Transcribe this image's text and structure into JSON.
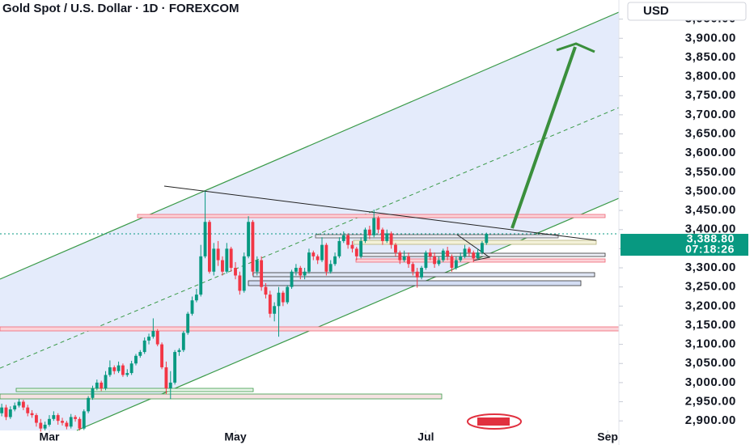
{
  "chart_data": {
    "type": "candlestick",
    "title": "Gold Spot / U.S. Dollar · 1D · FOREXCOM",
    "currency": "USD",
    "up_color": "#089981",
    "down_color": "#f23645",
    "open": [
      2920,
      2935,
      2910,
      2930,
      2940,
      2950,
      2935,
      2920,
      2915,
      2895,
      2880,
      2890,
      2905,
      2915,
      2900,
      2895,
      2885,
      2910,
      2905,
      2880,
      2925,
      2960,
      2985,
      3000,
      2985,
      3020,
      3040,
      3030,
      3045,
      3020,
      3025,
      3050,
      3070,
      3080,
      3110,
      3120,
      3135,
      3100,
      3040,
      2985,
      3000,
      3080,
      3085,
      3130,
      3180,
      3215,
      3230,
      3330,
      3420,
      3290,
      3350,
      3320,
      3290,
      3350,
      3300,
      3280,
      3240,
      3330,
      3420,
      3290,
      3320,
      3250,
      3230,
      3180,
      3200,
      3235,
      3210,
      3250,
      3290,
      3300,
      3280,
      3290,
      3340,
      3330,
      3320,
      3360,
      3290,
      3310,
      3330,
      3370,
      3385,
      3360,
      3350,
      3330,
      3370,
      3400,
      3385,
      3430,
      3400,
      3370,
      3390,
      3360,
      3340,
      3320,
      3330,
      3310,
      3290,
      3275,
      3300,
      3340,
      3330,
      3310,
      3320,
      3345,
      3330,
      3300,
      3320,
      3330,
      3350,
      3340,
      3325,
      3340,
      3365
    ],
    "high": [
      2945,
      2942,
      2938,
      2948,
      2958,
      2955,
      2942,
      2928,
      2920,
      2905,
      2898,
      2915,
      2925,
      2920,
      2908,
      2900,
      2918,
      2915,
      2910,
      2930,
      2965,
      2992,
      3008,
      3005,
      3030,
      3058,
      3045,
      3055,
      3050,
      3035,
      3057,
      3075,
      3085,
      3118,
      3128,
      3168,
      3140,
      3105,
      3055,
      3030,
      3085,
      3090,
      3135,
      3185,
      3225,
      3245,
      3360,
      3500,
      3425,
      3365,
      3370,
      3330,
      3365,
      3355,
      3315,
      3290,
      3340,
      3435,
      3425,
      3330,
      3330,
      3260,
      3240,
      3210,
      3250,
      3240,
      3255,
      3295,
      3310,
      3305,
      3300,
      3350,
      3345,
      3335,
      3380,
      3365,
      3320,
      3340,
      3380,
      3395,
      3390,
      3370,
      3355,
      3380,
      3405,
      3410,
      3452,
      3435,
      3405,
      3400,
      3395,
      3365,
      3345,
      3345,
      3340,
      3315,
      3300,
      3305,
      3345,
      3350,
      3340,
      3330,
      3350,
      3355,
      3335,
      3330,
      3340,
      3360,
      3355,
      3345,
      3350,
      3370,
      3392
    ],
    "low": [
      2912,
      2902,
      2905,
      2925,
      2935,
      2928,
      2912,
      2908,
      2885,
      2872,
      2875,
      2885,
      2900,
      2890,
      2888,
      2878,
      2880,
      2898,
      2875,
      2876,
      2920,
      2955,
      2980,
      2978,
      2980,
      3015,
      3022,
      3025,
      3015,
      3015,
      3020,
      3045,
      3065,
      3075,
      3100,
      3115,
      3095,
      3035,
      2970,
      2957,
      2995,
      3070,
      3080,
      3125,
      3175,
      3210,
      3225,
      3325,
      3285,
      3280,
      3305,
      3280,
      3285,
      3290,
      3270,
      3230,
      3235,
      3325,
      3280,
      3280,
      3240,
      3220,
      3170,
      3160,
      3120,
      3200,
      3205,
      3245,
      3280,
      3270,
      3270,
      3285,
      3320,
      3310,
      3315,
      3280,
      3285,
      3305,
      3325,
      3365,
      3350,
      3340,
      3320,
      3325,
      3365,
      3375,
      3380,
      3390,
      3360,
      3365,
      3350,
      3330,
      3310,
      3315,
      3300,
      3280,
      3248,
      3270,
      3295,
      3320,
      3300,
      3305,
      3315,
      3320,
      3290,
      3295,
      3315,
      3325,
      3330,
      3315,
      3320,
      3335,
      3360
    ],
    "close": [
      2935,
      2910,
      2930,
      2940,
      2950,
      2935,
      2920,
      2915,
      2895,
      2880,
      2890,
      2905,
      2915,
      2900,
      2895,
      2885,
      2910,
      2905,
      2880,
      2925,
      2960,
      2985,
      3000,
      2985,
      3020,
      3040,
      3030,
      3045,
      3020,
      3025,
      3050,
      3070,
      3080,
      3110,
      3120,
      3135,
      3100,
      3040,
      2985,
      3000,
      3080,
      3085,
      3130,
      3180,
      3215,
      3230,
      3330,
      3420,
      3290,
      3350,
      3320,
      3290,
      3350,
      3300,
      3280,
      3240,
      3330,
      3420,
      3290,
      3320,
      3250,
      3230,
      3180,
      3200,
      3235,
      3210,
      3250,
      3290,
      3300,
      3280,
      3290,
      3340,
      3330,
      3320,
      3360,
      3290,
      3310,
      3330,
      3370,
      3385,
      3360,
      3350,
      3330,
      3370,
      3400,
      3385,
      3430,
      3400,
      3370,
      3390,
      3360,
      3340,
      3320,
      3330,
      3310,
      3290,
      3275,
      3300,
      3340,
      3330,
      3310,
      3320,
      3345,
      3330,
      3300,
      3320,
      3330,
      3350,
      3340,
      3325,
      3340,
      3365,
      3388.8
    ],
    "xlim": [
      -0.4,
      142.6
    ],
    "xticks": [
      {
        "value": 11,
        "label": "Mar"
      },
      {
        "value": 54,
        "label": "May"
      },
      {
        "value": 98,
        "label": "Jul"
      },
      {
        "value": 140,
        "label": "Sep"
      }
    ],
    "ylim": [
      2875,
      4000
    ],
    "yticks": [
      {
        "value": 2900,
        "label": "2,900.00"
      },
      {
        "value": 2950,
        "label": "2,950.00"
      },
      {
        "value": 3000,
        "label": "3,000.00"
      },
      {
        "value": 3050,
        "label": "3,050.00"
      },
      {
        "value": 3100,
        "label": "3,100.00"
      },
      {
        "value": 3150,
        "label": "3,150.00"
      },
      {
        "value": 3200,
        "label": "3,200.00"
      },
      {
        "value": 3250,
        "label": "3,250.00"
      },
      {
        "value": 3300,
        "label": "3,300.00"
      },
      {
        "value": 3350,
        "label": "3,350.00"
      },
      {
        "value": 3400,
        "label": "3,400.00"
      },
      {
        "value": 3450,
        "label": "3,450.00"
      },
      {
        "value": 3500,
        "label": "3,500.00"
      },
      {
        "value": 3550,
        "label": "3,550.00"
      },
      {
        "value": 3600,
        "label": "3,600.00"
      },
      {
        "value": 3650,
        "label": "3,650.00"
      },
      {
        "value": 3700,
        "label": "3,700.00"
      },
      {
        "value": 3750,
        "label": "3,750.00"
      },
      {
        "value": 3800,
        "label": "3,800.00"
      },
      {
        "value": 3850,
        "label": "3,850.00"
      },
      {
        "value": 3900,
        "label": "3,900.00"
      },
      {
        "value": 3950,
        "label": "3,950.00"
      }
    ],
    "last_price": {
      "value": 3388.8,
      "label": "3,388.80"
    },
    "countdown": "07:18:26"
  }
}
